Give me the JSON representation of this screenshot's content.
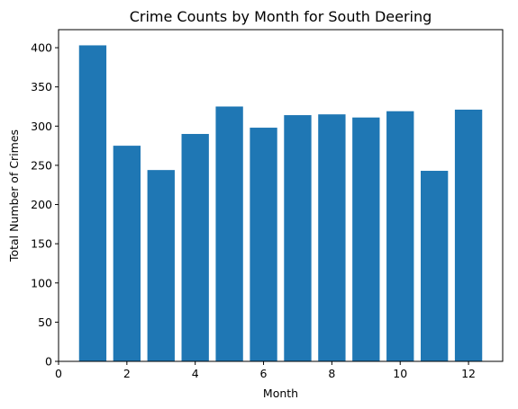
{
  "chart_data": {
    "type": "bar",
    "title": "Crime Counts by Month for South Deering",
    "xlabel": "Month",
    "ylabel": "Total Number of Crimes",
    "x": [
      1,
      2,
      3,
      4,
      5,
      6,
      7,
      8,
      9,
      10,
      11,
      12
    ],
    "values": [
      403,
      275,
      244,
      290,
      325,
      298,
      314,
      315,
      311,
      319,
      243,
      321
    ],
    "xlim": [
      0,
      13
    ],
    "ylim": [
      0,
      423
    ],
    "xticks": [
      0,
      2,
      4,
      6,
      8,
      10,
      12
    ],
    "yticks": [
      0,
      50,
      100,
      150,
      200,
      250,
      300,
      350,
      400
    ],
    "bar_color": "#1f77b4",
    "grid": false,
    "legend": "none"
  }
}
